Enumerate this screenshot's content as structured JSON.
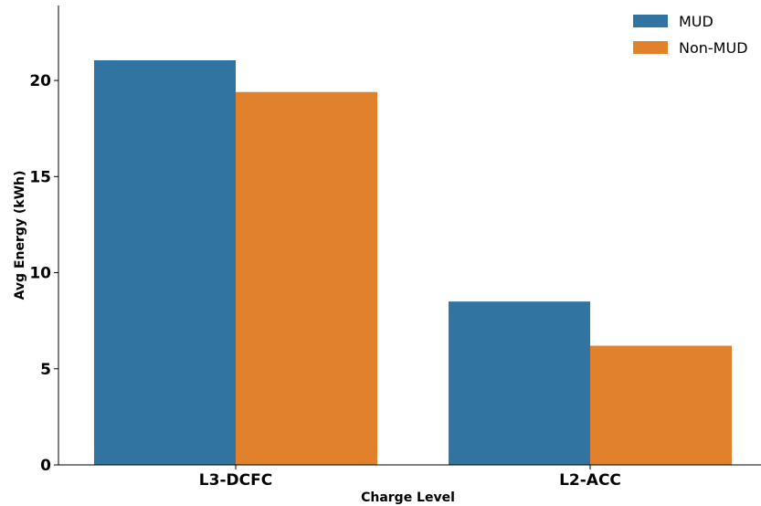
{
  "chart_data": {
    "type": "bar",
    "title": "",
    "xlabel": "Charge Level",
    "ylabel": "Avg Energy (kWh)",
    "categories": [
      "L3-DCFC",
      "L2-ACC"
    ],
    "series": [
      {
        "name": "MUD",
        "color": "#3274a1",
        "values": [
          21.05,
          8.5
        ]
      },
      {
        "name": "Non-MUD",
        "color": "#e1812c",
        "values": [
          19.4,
          6.2
        ]
      }
    ],
    "ylim": [
      0,
      23.9
    ],
    "yticks": [
      "0",
      "5",
      "10",
      "15",
      "20"
    ],
    "grid": false,
    "legend_position": "top-right"
  }
}
